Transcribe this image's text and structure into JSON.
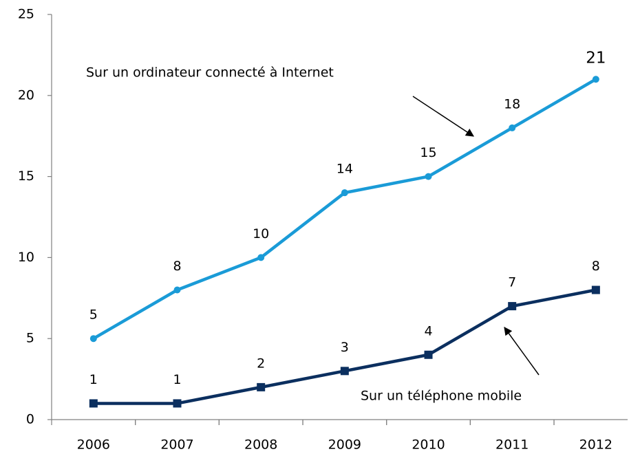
{
  "chart_data": {
    "type": "line",
    "categories": [
      "2006",
      "2007",
      "2008",
      "2009",
      "2010",
      "2011",
      "2012"
    ],
    "series": [
      {
        "name": "Sur un ordinateur connecté à Internet",
        "color": "#1a9bd7",
        "marker": "circle",
        "values": [
          5,
          8,
          10,
          14,
          15,
          18,
          21
        ]
      },
      {
        "name": "Sur un téléphone mobile",
        "color": "#0b2f5f",
        "marker": "square",
        "values": [
          1,
          1,
          2,
          3,
          4,
          7,
          8
        ]
      }
    ],
    "ylim": [
      0,
      25
    ],
    "yticks": [
      0,
      5,
      10,
      15,
      20,
      25
    ],
    "grid": false
  }
}
